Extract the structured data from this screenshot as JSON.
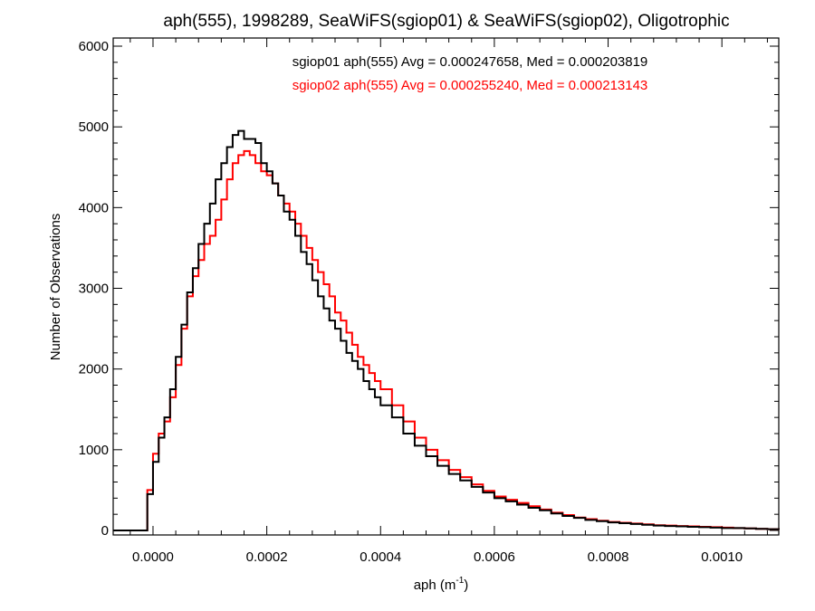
{
  "chart_data": {
    "type": "line",
    "title": "aph(555), 1998289, SeaWiFS(sgiop01) & SeaWiFS(sgiop02), Oligotrophic",
    "xlabel": "aph (m",
    "xlabel_sup": "-1",
    "xlabel_close": ")",
    "ylabel": "Number of Observations",
    "xlim": [
      -7e-05,
      0.0011
    ],
    "ylim": [
      0,
      6000
    ],
    "grid": false,
    "x_ticks": [
      0.0,
      0.0002,
      0.0004,
      0.0006,
      0.0008,
      0.001
    ],
    "x_tick_labels": [
      "0.0000",
      "0.0002",
      "0.0004",
      "0.0006",
      "0.0008",
      "0.0010"
    ],
    "y_ticks": [
      0,
      1000,
      2000,
      3000,
      4000,
      5000,
      6000
    ],
    "y_tick_labels": [
      "0",
      "1000",
      "2000",
      "3000",
      "4000",
      "5000",
      "6000"
    ],
    "annotations": [
      {
        "text": "sgiop01 aph(555) Avg = 0.000247658, Med = 0.000203819",
        "color": "#000000"
      },
      {
        "text": "sgiop02 aph(555) Avg = 0.000255240, Med = 0.000213143",
        "color": "#ff0000"
      }
    ],
    "series": [
      {
        "name": "sgiop01",
        "color": "#000000",
        "x": [
          -7e-05,
          -2e-05,
          -1e-05,
          0.0,
          1e-05,
          2e-05,
          3e-05,
          4e-05,
          5e-05,
          6e-05,
          7e-05,
          8e-05,
          9e-05,
          0.0001,
          0.00011,
          0.00012,
          0.00013,
          0.00014,
          0.00015,
          0.00016,
          0.00017,
          0.00018,
          0.00019,
          0.0002,
          0.00021,
          0.00022,
          0.00023,
          0.00024,
          0.00025,
          0.00026,
          0.00027,
          0.00028,
          0.00029,
          0.0003,
          0.00031,
          0.00032,
          0.00033,
          0.00034,
          0.00035,
          0.00036,
          0.00037,
          0.00038,
          0.00039,
          0.0004,
          0.00042,
          0.00044,
          0.00046,
          0.00048,
          0.0005,
          0.00052,
          0.00054,
          0.00056,
          0.00058,
          0.0006,
          0.00062,
          0.00064,
          0.00066,
          0.00068,
          0.0007,
          0.00072,
          0.00074,
          0.00076,
          0.00078,
          0.0008,
          0.00082,
          0.00084,
          0.00086,
          0.00088,
          0.0009,
          0.00092,
          0.00094,
          0.00096,
          0.00098,
          0.001,
          0.00102,
          0.00104,
          0.00106,
          0.00108,
          0.0011
        ],
        "y": [
          0,
          0,
          450,
          850,
          1150,
          1400,
          1750,
          2150,
          2550,
          2950,
          3250,
          3550,
          3800,
          4050,
          4350,
          4550,
          4750,
          4900,
          4950,
          4850,
          4850,
          4800,
          4550,
          4450,
          4300,
          4150,
          3950,
          3850,
          3650,
          3450,
          3300,
          3100,
          2900,
          2750,
          2600,
          2500,
          2350,
          2200,
          2100,
          2000,
          1850,
          1750,
          1650,
          1550,
          1400,
          1200,
          1050,
          920,
          800,
          700,
          620,
          540,
          470,
          400,
          360,
          320,
          280,
          250,
          210,
          180,
          155,
          130,
          115,
          100,
          90,
          80,
          70,
          60,
          55,
          50,
          45,
          40,
          35,
          30,
          30,
          25,
          20,
          15,
          10
        ]
      },
      {
        "name": "sgiop02",
        "color": "#ff0000",
        "x": [
          -7e-05,
          -2e-05,
          -1e-05,
          0.0,
          1e-05,
          2e-05,
          3e-05,
          4e-05,
          5e-05,
          6e-05,
          7e-05,
          8e-05,
          9e-05,
          0.0001,
          0.00011,
          0.00012,
          0.00013,
          0.00014,
          0.00015,
          0.00016,
          0.00017,
          0.00018,
          0.00019,
          0.0002,
          0.00021,
          0.00022,
          0.00023,
          0.00024,
          0.00025,
          0.00026,
          0.00027,
          0.00028,
          0.00029,
          0.0003,
          0.00031,
          0.00032,
          0.00033,
          0.00034,
          0.00035,
          0.00036,
          0.00037,
          0.00038,
          0.00039,
          0.0004,
          0.00042,
          0.00044,
          0.00046,
          0.00048,
          0.0005,
          0.00052,
          0.00054,
          0.00056,
          0.00058,
          0.0006,
          0.00062,
          0.00064,
          0.00066,
          0.00068,
          0.0007,
          0.00072,
          0.00074,
          0.00076,
          0.00078,
          0.0008,
          0.00082,
          0.00084,
          0.00086,
          0.00088,
          0.0009,
          0.00092,
          0.00094,
          0.00096,
          0.00098,
          0.001,
          0.00102,
          0.00104,
          0.00106,
          0.00108,
          0.0011
        ],
        "y": [
          0,
          0,
          500,
          950,
          1200,
          1350,
          1650,
          2050,
          2500,
          2900,
          3150,
          3350,
          3550,
          3650,
          3850,
          4100,
          4350,
          4550,
          4650,
          4700,
          4650,
          4550,
          4450,
          4400,
          4300,
          4150,
          4050,
          3950,
          3800,
          3650,
          3500,
          3350,
          3200,
          3050,
          2900,
          2700,
          2600,
          2450,
          2300,
          2150,
          2050,
          1950,
          1850,
          1750,
          1550,
          1350,
          1150,
          1000,
          870,
          750,
          660,
          570,
          490,
          420,
          380,
          340,
          300,
          260,
          220,
          190,
          160,
          140,
          120,
          105,
          95,
          85,
          75,
          65,
          60,
          55,
          50,
          45,
          40,
          35,
          30,
          25,
          20,
          15,
          10
        ]
      }
    ]
  }
}
